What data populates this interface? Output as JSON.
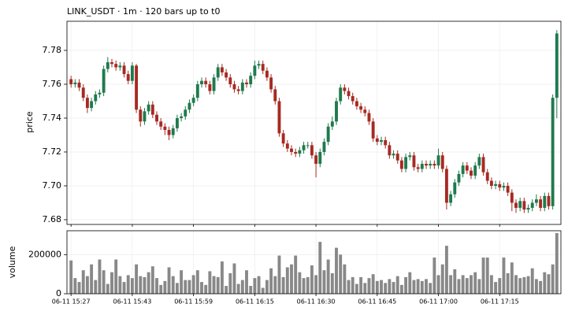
{
  "chart_data": [
    {
      "type": "candlestick",
      "title": "LINK_USDT  ·  1m  ·  120 bars up to t0",
      "ylabel": "price",
      "up_color": "#1f7a4d",
      "down_color": "#a62a22",
      "grid": true,
      "ylim": [
        7.6772,
        7.7972
      ],
      "yticks": [
        7.68,
        {
          "value": 7.7,
          "label": "7.70"
        },
        7.72,
        7.74,
        7.76,
        7.78
      ],
      "open": [
        7.763,
        7.76,
        7.761,
        7.758,
        7.752,
        7.746,
        7.75,
        7.754,
        7.755,
        7.769,
        7.773,
        7.772,
        7.77,
        7.771,
        7.766,
        7.762,
        7.771,
        7.745,
        7.738,
        7.744,
        7.748,
        7.742,
        7.738,
        7.735,
        7.733,
        7.73,
        7.734,
        7.74,
        7.741,
        7.745,
        7.749,
        7.752,
        7.76,
        7.762,
        7.76,
        7.756,
        7.764,
        7.77,
        7.767,
        7.764,
        7.76,
        7.757,
        7.756,
        7.761,
        7.76,
        7.765,
        7.771,
        7.772,
        7.768,
        7.764,
        7.757,
        7.75,
        7.731,
        7.725,
        7.722,
        7.72,
        7.719,
        7.721,
        7.724,
        7.724,
        7.718,
        7.713,
        7.72,
        7.726,
        7.735,
        7.738,
        7.75,
        7.758,
        7.756,
        7.753,
        7.75,
        7.747,
        7.745,
        7.743,
        7.738,
        7.728,
        7.726,
        7.727,
        7.724,
        7.718,
        7.719,
        7.715,
        7.71,
        7.717,
        7.718,
        7.711,
        7.71,
        7.713,
        7.712,
        7.713,
        7.712,
        7.718,
        7.71,
        7.69,
        7.695,
        7.702,
        7.707,
        7.712,
        7.709,
        7.706,
        7.712,
        7.717,
        7.708,
        7.703,
        7.7,
        7.701,
        7.699,
        7.7,
        7.696,
        7.69,
        7.687,
        7.691,
        7.686,
        7.687,
        7.69,
        7.692,
        7.687,
        7.694,
        7.688,
        7.752
      ],
      "high": [
        7.765,
        7.763,
        7.763,
        7.76,
        7.754,
        7.752,
        7.756,
        7.757,
        7.771,
        7.776,
        7.775,
        7.774,
        7.773,
        7.773,
        7.768,
        7.773,
        7.772,
        7.747,
        7.746,
        7.75,
        7.75,
        7.744,
        7.74,
        7.737,
        7.735,
        7.736,
        7.742,
        7.743,
        7.747,
        7.751,
        7.754,
        7.762,
        7.764,
        7.764,
        7.762,
        7.766,
        7.772,
        7.772,
        7.769,
        7.766,
        7.762,
        7.759,
        7.763,
        7.763,
        7.767,
        7.774,
        7.774,
        7.774,
        7.77,
        7.766,
        7.759,
        7.752,
        7.733,
        7.727,
        7.724,
        7.722,
        7.723,
        7.726,
        7.726,
        7.726,
        7.72,
        7.722,
        7.728,
        7.737,
        7.741,
        7.752,
        7.76,
        7.76,
        7.758,
        7.755,
        7.752,
        7.749,
        7.747,
        7.745,
        7.74,
        7.73,
        7.729,
        7.729,
        7.726,
        7.721,
        7.721,
        7.717,
        7.719,
        7.72,
        7.72,
        7.713,
        7.715,
        7.715,
        7.715,
        7.715,
        7.722,
        7.72,
        7.712,
        7.697,
        7.704,
        7.709,
        7.714,
        7.714,
        7.711,
        7.714,
        7.719,
        7.719,
        7.71,
        7.705,
        7.703,
        7.703,
        7.702,
        7.702,
        7.698,
        7.692,
        7.693,
        7.693,
        7.689,
        7.692,
        7.695,
        7.694,
        7.696,
        7.696,
        7.754,
        7.792
      ],
      "low": [
        7.758,
        7.758,
        7.756,
        7.75,
        7.743,
        7.744,
        7.748,
        7.752,
        7.753,
        7.767,
        7.77,
        7.768,
        7.768,
        7.764,
        7.76,
        7.76,
        7.743,
        7.735,
        7.736,
        7.742,
        7.74,
        7.736,
        7.733,
        7.73,
        7.727,
        7.728,
        7.732,
        7.738,
        7.739,
        7.743,
        7.747,
        7.75,
        7.758,
        7.758,
        7.754,
        7.754,
        7.762,
        7.765,
        7.762,
        7.758,
        7.755,
        7.754,
        7.754,
        7.758,
        7.758,
        7.763,
        7.769,
        7.766,
        7.762,
        7.755,
        7.748,
        7.729,
        7.723,
        7.72,
        7.718,
        7.717,
        7.717,
        7.719,
        7.722,
        7.716,
        7.705,
        7.711,
        7.718,
        7.724,
        7.733,
        7.736,
        7.748,
        7.754,
        7.751,
        7.748,
        7.745,
        7.743,
        7.741,
        7.736,
        7.726,
        7.724,
        7.724,
        7.722,
        7.716,
        7.716,
        7.713,
        7.708,
        7.708,
        7.715,
        7.709,
        7.708,
        7.708,
        7.71,
        7.71,
        7.71,
        7.71,
        7.708,
        7.686,
        7.688,
        7.693,
        7.7,
        7.705,
        7.707,
        7.704,
        7.704,
        7.71,
        7.706,
        7.701,
        7.698,
        7.698,
        7.697,
        7.697,
        7.694,
        7.685,
        7.684,
        7.685,
        7.684,
        7.684,
        7.685,
        7.688,
        7.685,
        7.685,
        7.686,
        7.686,
        7.74
      ],
      "close": [
        7.76,
        7.761,
        7.758,
        7.752,
        7.746,
        7.75,
        7.754,
        7.755,
        7.769,
        7.773,
        7.772,
        7.77,
        7.771,
        7.766,
        7.762,
        7.771,
        7.745,
        7.738,
        7.744,
        7.748,
        7.742,
        7.738,
        7.735,
        7.733,
        7.73,
        7.734,
        7.74,
        7.741,
        7.745,
        7.749,
        7.752,
        7.76,
        7.762,
        7.76,
        7.756,
        7.764,
        7.77,
        7.767,
        7.764,
        7.76,
        7.757,
        7.756,
        7.761,
        7.76,
        7.765,
        7.771,
        7.772,
        7.768,
        7.764,
        7.757,
        7.75,
        7.731,
        7.725,
        7.722,
        7.72,
        7.719,
        7.721,
        7.724,
        7.724,
        7.718,
        7.713,
        7.72,
        7.726,
        7.735,
        7.738,
        7.75,
        7.758,
        7.756,
        7.753,
        7.75,
        7.747,
        7.745,
        7.743,
        7.738,
        7.728,
        7.726,
        7.727,
        7.724,
        7.718,
        7.719,
        7.715,
        7.71,
        7.717,
        7.718,
        7.711,
        7.71,
        7.713,
        7.712,
        7.713,
        7.712,
        7.718,
        7.71,
        7.69,
        7.695,
        7.702,
        7.707,
        7.712,
        7.709,
        7.706,
        7.712,
        7.717,
        7.708,
        7.703,
        7.7,
        7.701,
        7.699,
        7.7,
        7.696,
        7.69,
        7.687,
        7.691,
        7.686,
        7.687,
        7.69,
        7.692,
        7.687,
        7.694,
        7.688,
        7.752,
        7.79
      ]
    },
    {
      "type": "bar",
      "ylabel": "volume",
      "color": "#888888",
      "grid": true,
      "ylim": [
        0,
        322000
      ],
      "yticks": [
        0,
        200000
      ],
      "xlim": [
        -1,
        120
      ],
      "xticks": [
        {
          "value": 0,
          "label": "06-11 15:27"
        },
        {
          "value": 15,
          "label": "06-11 15:43"
        },
        {
          "value": 30,
          "label": "06-11 15:59"
        },
        {
          "value": 45,
          "label": "06-11 16:15"
        },
        {
          "value": 60,
          "label": "06-11 16:30"
        },
        {
          "value": 75,
          "label": "06-11 16:45"
        },
        {
          "value": 90,
          "label": "06-11 17:00"
        },
        {
          "value": 105,
          "label": "06-11 17:15"
        }
      ],
      "values": [
        170000,
        80000,
        60000,
        120000,
        90000,
        150000,
        70000,
        175000,
        120000,
        50000,
        110000,
        175000,
        90000,
        60000,
        95000,
        80000,
        150000,
        90000,
        85000,
        110000,
        140000,
        80000,
        45000,
        65000,
        135000,
        90000,
        55000,
        120000,
        70000,
        70000,
        95000,
        120000,
        60000,
        45000,
        115000,
        90000,
        85000,
        165000,
        40000,
        105000,
        155000,
        50000,
        70000,
        120000,
        40000,
        80000,
        90000,
        30000,
        70000,
        130000,
        90000,
        195000,
        85000,
        135000,
        150000,
        195000,
        110000,
        80000,
        85000,
        145000,
        95000,
        265000,
        120000,
        175000,
        105000,
        235000,
        200000,
        150000,
        70000,
        85000,
        50000,
        85000,
        55000,
        80000,
        100000,
        65000,
        70000,
        55000,
        75000,
        60000,
        90000,
        45000,
        85000,
        110000,
        70000,
        75000,
        65000,
        75000,
        55000,
        185000,
        95000,
        150000,
        245000,
        95000,
        125000,
        75000,
        95000,
        80000,
        95000,
        110000,
        75000,
        185000,
        185000,
        95000,
        60000,
        80000,
        185000,
        105000,
        160000,
        95000,
        80000,
        85000,
        90000,
        130000,
        75000,
        65000,
        110000,
        100000,
        150000,
        310000
      ]
    }
  ]
}
